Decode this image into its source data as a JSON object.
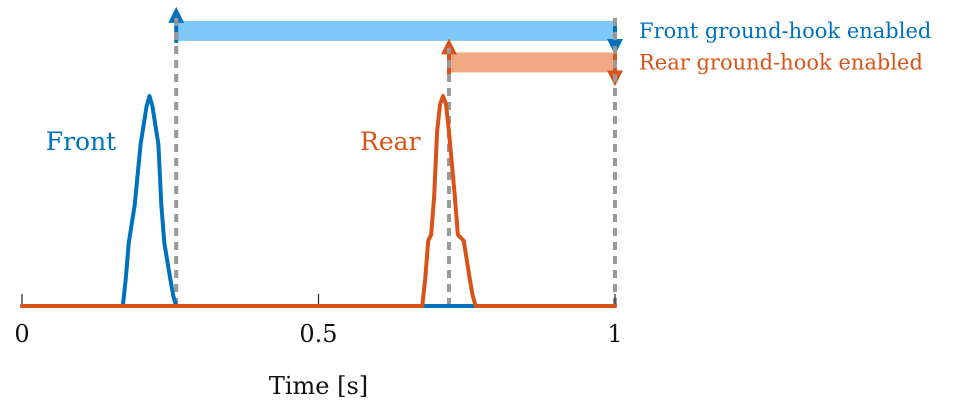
{
  "chart_data": {
    "type": "line",
    "title": "",
    "xlabel": "Time [s]",
    "ylabel": "",
    "xlim": [
      0,
      1
    ],
    "ylim": [
      0,
      1
    ],
    "x_ticks": [
      {
        "value": 0,
        "label": "0"
      },
      {
        "value": 0.5,
        "label": "0.5"
      },
      {
        "value": 1,
        "label": "1"
      }
    ],
    "grid": false,
    "series": [
      {
        "name": "Front",
        "color": "#0072BD",
        "x": [
          0,
          0.17,
          0.175,
          0.18,
          0.19,
          0.2,
          0.21,
          0.215,
          0.22,
          0.23,
          0.235,
          0.24,
          0.25,
          0.255,
          0.26,
          1
        ],
        "y": [
          0,
          0,
          0.13,
          0.3,
          0.48,
          0.77,
          0.95,
          1.0,
          0.95,
          0.77,
          0.48,
          0.3,
          0.13,
          0.05,
          0,
          0
        ]
      },
      {
        "name": "Rear",
        "color": "#D95319",
        "x": [
          0,
          0.675,
          0.68,
          0.685,
          0.69,
          0.695,
          0.7,
          0.705,
          0.71,
          0.715,
          0.72,
          0.73,
          0.735,
          0.745,
          0.755,
          0.76,
          0.765,
          1
        ],
        "y": [
          0,
          0,
          0.13,
          0.31,
          0.34,
          0.52,
          0.83,
          0.96,
          1.0,
          0.96,
          0.83,
          0.52,
          0.34,
          0.31,
          0.13,
          0.05,
          0,
          0
        ]
      }
    ],
    "overlay_segments": [
      {
        "series": "Front",
        "color": "#0072BD",
        "x": [
          0.72,
          0.76
        ],
        "y": 0
      }
    ],
    "vertical_markers": [
      {
        "x": 0.26,
        "y_top": 1.38,
        "color": "#999999"
      },
      {
        "x": 0.72,
        "y_top": 1.23,
        "color": "#999999"
      },
      {
        "x": 1.0,
        "y_top": 1.38,
        "color": "#999999"
      }
    ],
    "enable_bars": [
      {
        "label": "Front ground-hook enabled",
        "start": 0.26,
        "end": 1.0,
        "bar_color": "#7DC8F7",
        "arrow_color": "#0072BD",
        "y": 1.31
      },
      {
        "label": "Rear ground-hook enabled",
        "start": 0.72,
        "end": 1.0,
        "bar_color": "#F0A985",
        "arrow_color": "#D95319",
        "y": 1.16
      }
    ],
    "series_labels": [
      {
        "text": "Front",
        "color": "#0072BD",
        "x": 0.04,
        "y": 0.8
      },
      {
        "text": "Rear",
        "color": "#D95319",
        "x": 0.57,
        "y": 0.8
      }
    ]
  }
}
